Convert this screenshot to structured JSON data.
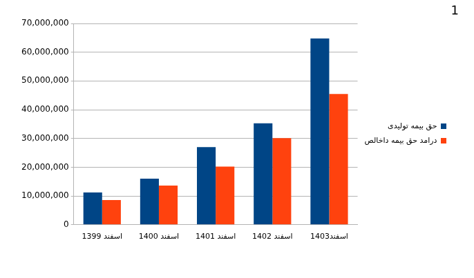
{
  "chart_data": {
    "type": "bar",
    "annotation": "1",
    "categories": [
      "اسفند 1399",
      "اسفند 1400",
      "اسفند 1401",
      "اسفند 1402",
      "اسفند1403"
    ],
    "series": [
      {
        "name": "حق بیمه تولیدی",
        "color": "#004586",
        "values": [
          11200000,
          16000000,
          27000000,
          35300000,
          64800000
        ]
      },
      {
        "name": "درامد حق بیمه داخالص",
        "color": "#ff420e",
        "values": [
          8600000,
          13600000,
          20200000,
          30100000,
          45500000
        ]
      }
    ],
    "ylim": [
      0,
      70000000
    ],
    "yticks": [
      0,
      {
        "value": 10000000,
        "label": "10,000,000"
      },
      {
        "value": 20000000,
        "label": "20,000,000"
      },
      {
        "value": 30000000,
        "label": "30,000,000"
      },
      {
        "value": 40000000,
        "label": "40,000,000"
      },
      {
        "value": 50000000,
        "label": "50,000,000"
      },
      {
        "value": 60000000,
        "label": "60,000,000"
      },
      {
        "value": 70000000,
        "label": "70,000,000"
      }
    ],
    "grid": true,
    "legend": "right"
  }
}
